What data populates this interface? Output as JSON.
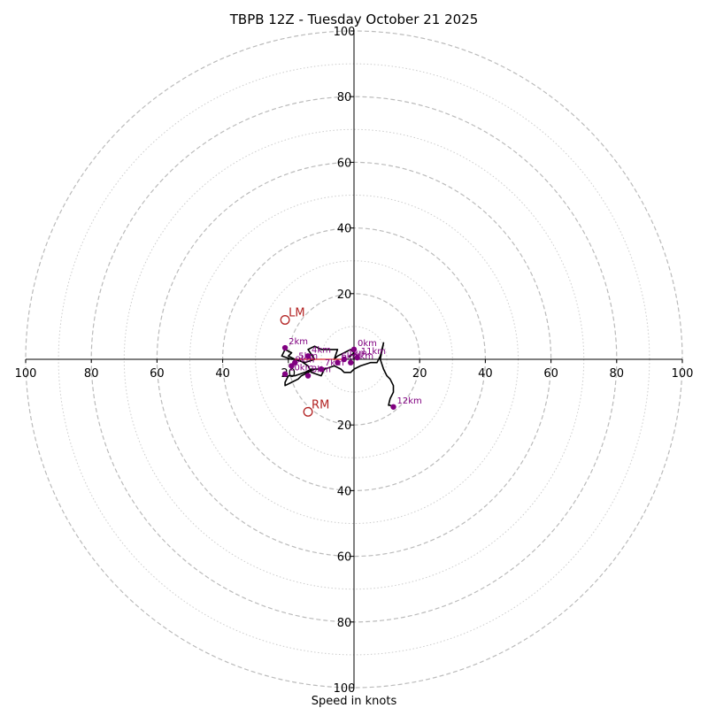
{
  "chart_data": {
    "type": "hodograph",
    "title": "TBPB 12Z - Tuesday October 21 2025",
    "xlabel": "Speed in knots",
    "units": "knots",
    "max_speed": 100,
    "major_rings": [
      20,
      40,
      60,
      80,
      100
    ],
    "minor_rings": [
      10,
      30,
      50,
      70,
      90
    ],
    "x_ticks": [
      {
        "value": -100,
        "label": "100"
      },
      {
        "value": -80,
        "label": "80"
      },
      {
        "value": -60,
        "label": "60"
      },
      {
        "value": -40,
        "label": "40"
      },
      {
        "value": -20,
        "label": "20"
      },
      {
        "value": 20,
        "label": "20"
      },
      {
        "value": 40,
        "label": "40"
      },
      {
        "value": 60,
        "label": "60"
      },
      {
        "value": 80,
        "label": "80"
      },
      {
        "value": 100,
        "label": "100"
      }
    ],
    "y_ticks": [
      {
        "value": 100,
        "label": "100"
      },
      {
        "value": 80,
        "label": "80"
      },
      {
        "value": 60,
        "label": "60"
      },
      {
        "value": 40,
        "label": "40"
      },
      {
        "value": 20,
        "label": "20"
      },
      {
        "value": -20,
        "label": "20"
      },
      {
        "value": -40,
        "label": "40"
      },
      {
        "value": -60,
        "label": "60"
      },
      {
        "value": -80,
        "label": "80"
      },
      {
        "value": -100,
        "label": "100"
      }
    ],
    "hodograph": {
      "u": [
        -1.5,
        0,
        -1,
        -3,
        -5,
        -6,
        -5,
        -8,
        -10,
        -12,
        -14,
        -12,
        -15,
        -18,
        -20,
        -19,
        -21,
        -22,
        -19,
        -17,
        -14,
        -13,
        -10,
        -9,
        -13,
        -15,
        -18,
        -20,
        -21,
        -21,
        -19,
        -17,
        -16,
        -12,
        -11,
        -9,
        -6,
        -4,
        -3,
        -1,
        0,
        2,
        5,
        7,
        8,
        9,
        8,
        9,
        10,
        11,
        12,
        12,
        11,
        10.5,
        11,
        12
      ],
      "v": [
        0.5,
        2,
        3,
        2,
        1,
        0,
        3,
        3,
        3,
        4,
        3,
        0,
        -1,
        0,
        1,
        2,
        3,
        1,
        0,
        0,
        -2,
        -4,
        -5,
        -3,
        -3,
        -4,
        -5,
        -5,
        -7,
        -8,
        -7,
        -6,
        -5,
        -3,
        -3,
        -3,
        -2,
        -3,
        -4,
        -4,
        -3,
        -2,
        -1,
        -1,
        1,
        5,
        0,
        -3,
        -5,
        -6,
        -8,
        -10,
        -12,
        -14,
        -14,
        -14.5
      ]
    },
    "levels": [
      {
        "label": "0km",
        "u": 0,
        "v": 3
      },
      {
        "label": "1km",
        "u": -3,
        "v": 0
      },
      {
        "label": "2km",
        "u": -21,
        "v": 3.5
      },
      {
        "label": "3km",
        "u": -14,
        "v": -5
      },
      {
        "label": "4km",
        "u": -14,
        "v": 1
      },
      {
        "label": "5km",
        "u": -18,
        "v": -1
      },
      {
        "label": "6km",
        "u": -5,
        "v": -1
      },
      {
        "label": "7km",
        "u": -10,
        "v": -3
      },
      {
        "label": "8km",
        "u": -1,
        "v": -1
      },
      {
        "label": "9km",
        "u": -19,
        "v": -2
      },
      {
        "label": "10km",
        "u": -21,
        "v": -4.5
      },
      {
        "label": "11km",
        "u": 1,
        "v": 0.5
      },
      {
        "label": "12km",
        "u": 12,
        "v": -14.5
      }
    ],
    "shear_vector": {
      "u1": -18,
      "v1": 0,
      "u2": -3,
      "v2": 0
    },
    "storm_motion": [
      {
        "label": "LM",
        "u": -21,
        "v": 12
      },
      {
        "label": "RM",
        "u": -14,
        "v": -16
      }
    ]
  }
}
